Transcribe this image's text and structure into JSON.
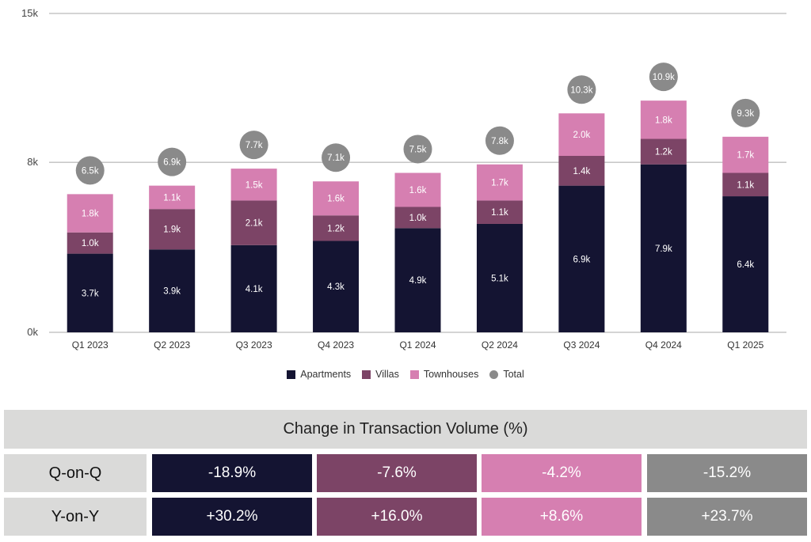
{
  "colors": {
    "apartments": "#141432",
    "villas": "#7c4466",
    "townhouses": "#d67fb1",
    "total": "#8a8a8a",
    "table_label_bg": "#dadad9",
    "gridline": "#a8a8a8"
  },
  "chart_data": {
    "type": "bar",
    "stacked": true,
    "categories": [
      "Q1 2023",
      "Q2 2023",
      "Q3 2023",
      "Q4 2023",
      "Q1 2024",
      "Q2 2024",
      "Q3 2024",
      "Q4 2024",
      "Q1 2025"
    ],
    "series": [
      {
        "name": "Apartments",
        "values": [
          3.7,
          3.9,
          4.1,
          4.3,
          4.9,
          5.1,
          6.9,
          7.9,
          6.4
        ],
        "labels": [
          "3.7k",
          "3.9k",
          "4.1k",
          "4.3k",
          "4.9k",
          "5.1k",
          "6.9k",
          "7.9k",
          "6.4k"
        ]
      },
      {
        "name": "Villas",
        "values": [
          1.0,
          1.9,
          2.1,
          1.2,
          1.0,
          1.1,
          1.4,
          1.2,
          1.1
        ],
        "labels": [
          "1.0k",
          "1.9k",
          "2.1k",
          "1.2k",
          "1.0k",
          "1.1k",
          "1.4k",
          "1.2k",
          "1.1k"
        ]
      },
      {
        "name": "Townhouses",
        "values": [
          1.8,
          1.1,
          1.5,
          1.6,
          1.6,
          1.7,
          2.0,
          1.8,
          1.7
        ],
        "labels": [
          "1.8k",
          "1.1k",
          "1.5k",
          "1.6k",
          "1.6k",
          "1.7k",
          "2.0k",
          "1.8k",
          "1.7k"
        ]
      }
    ],
    "totals": {
      "name": "Total",
      "values": [
        6.5,
        6.9,
        7.7,
        7.1,
        7.5,
        7.8,
        10.3,
        10.9,
        9.3
      ],
      "labels": [
        "6.5k",
        "6.9k",
        "7.7k",
        "7.1k",
        "7.5k",
        "7.8k",
        "10.3k",
        "10.9k",
        "9.3k"
      ]
    },
    "yticks": [
      {
        "value": 0,
        "label": "0k"
      },
      {
        "value": 8,
        "label": "8k"
      },
      {
        "value": 15,
        "label": "15k"
      }
    ],
    "ylim": [
      0,
      15
    ],
    "grid": true,
    "legend_position": "bottom-center"
  },
  "legend": {
    "items": [
      {
        "label": "Apartments",
        "shape": "square"
      },
      {
        "label": "Villas",
        "shape": "square"
      },
      {
        "label": "Townhouses",
        "shape": "square"
      },
      {
        "label": "Total",
        "shape": "circle"
      }
    ]
  },
  "table": {
    "title": "Change in Transaction Volume (%)",
    "rows": [
      {
        "label": "Q-on-Q",
        "cells": [
          "-18.9%",
          "-7.6%",
          "-4.2%",
          "-15.2%"
        ]
      },
      {
        "label": "Y-on-Y",
        "cells": [
          "+30.2%",
          "+16.0%",
          "+8.6%",
          "+23.7%"
        ]
      }
    ]
  }
}
